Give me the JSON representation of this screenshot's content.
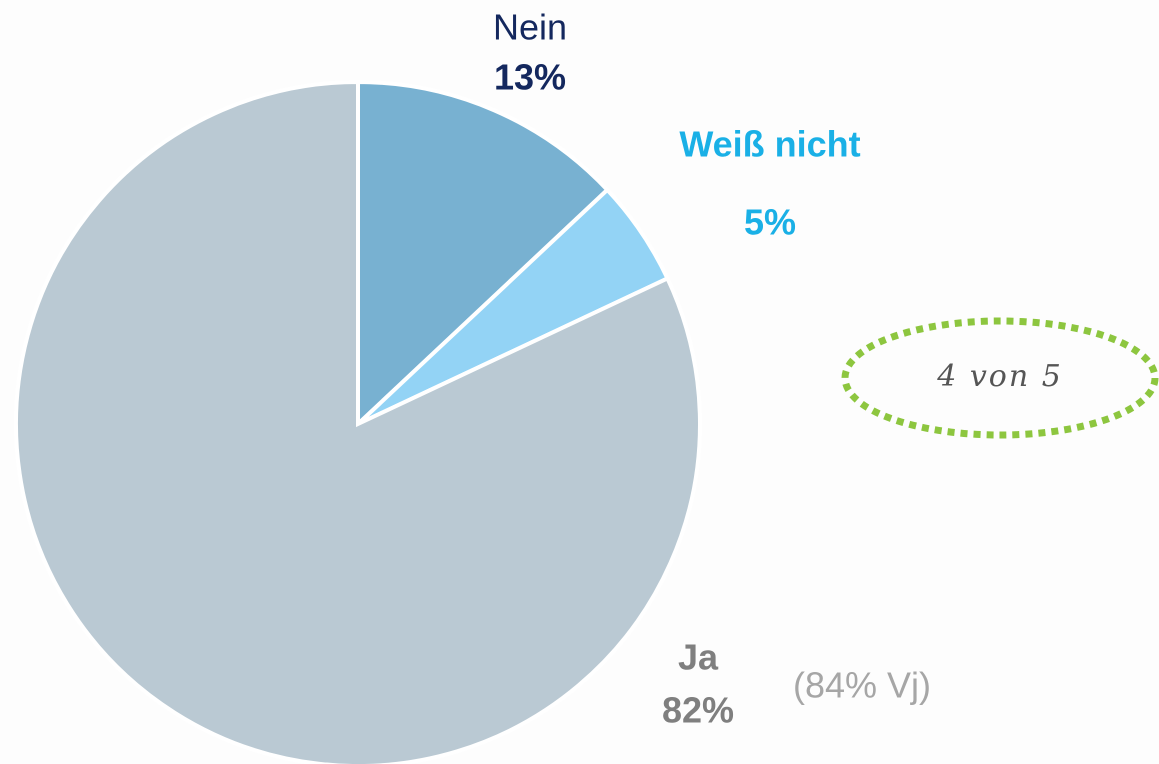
{
  "chart_data": {
    "type": "pie",
    "categories": [
      "Nein",
      "Weiß nicht",
      "Ja"
    ],
    "values": [
      13,
      5,
      82
    ],
    "value_labels": [
      "13%",
      "5%",
      "82%"
    ],
    "colors": [
      "#78b1d1",
      "#93d3f5",
      "#bac9d3"
    ],
    "annotations": [
      "(84% Vj)",
      "4 von 5"
    ]
  }
}
